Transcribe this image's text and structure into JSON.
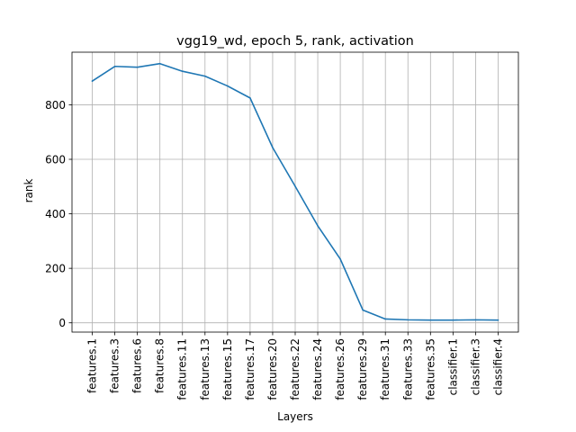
{
  "chart_data": {
    "type": "line",
    "title": "vgg19_wd, epoch 5, rank, activation",
    "xlabel": "Layers",
    "ylabel": "rank",
    "categories": [
      "features.1",
      "features.3",
      "features.6",
      "features.8",
      "features.11",
      "features.13",
      "features.15",
      "features.17",
      "features.20",
      "features.22",
      "features.24",
      "features.26",
      "features.29",
      "features.31",
      "features.33",
      "features.35",
      "classifier.1",
      "classifier.3",
      "classifier.4"
    ],
    "series": [
      {
        "values": [
          887,
          941,
          938,
          951,
          923,
          905,
          869,
          825,
          643,
          501,
          356,
          234,
          47,
          14,
          11,
          10,
          10,
          11,
          10
        ]
      }
    ],
    "ylim": [
      -34,
      993
    ],
    "yticks": [
      0,
      200,
      400,
      600,
      800
    ],
    "grid": true,
    "line_color": "#1f77b4"
  }
}
